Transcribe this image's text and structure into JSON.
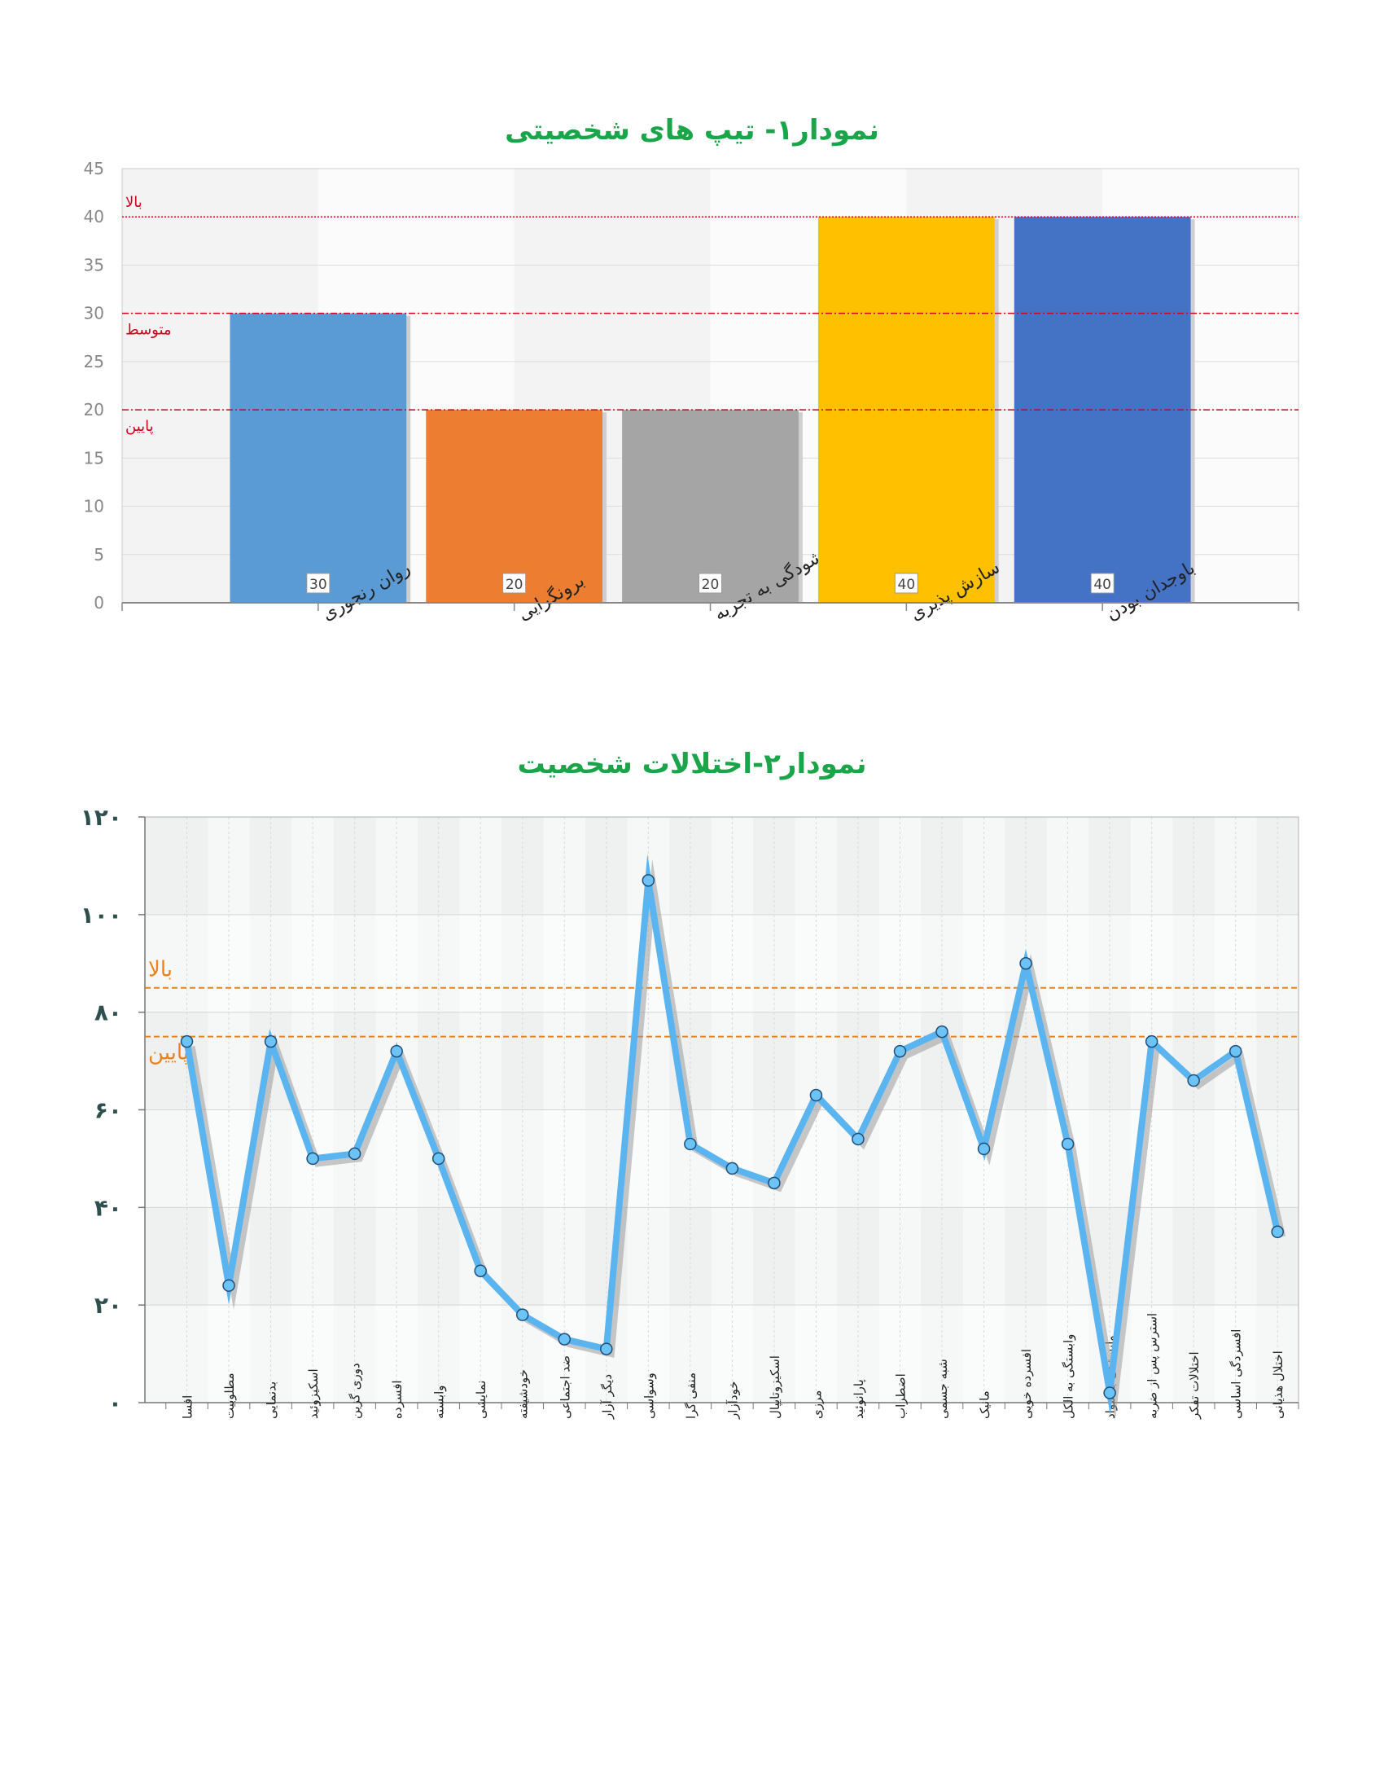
{
  "chart_data": [
    {
      "type": "bar",
      "title": "نمودار۱- تیپ های شخصیتی",
      "xlabel": "",
      "ylabel": "",
      "ylim": [
        0,
        45
      ],
      "yticks": [
        "0",
        "5",
        "10",
        "15",
        "20",
        "25",
        "30",
        "35",
        "40",
        "45"
      ],
      "grid": true,
      "categories": [
        "روان رنجوری",
        "برونگرایی",
        "گشودگی به تجربه",
        "سازش پذیری",
        "باوجدان بودن"
      ],
      "values": [
        30,
        20,
        20,
        40,
        40
      ],
      "data_labels": [
        "30",
        "20",
        "20",
        "40",
        "40"
      ],
      "colors": [
        "#5b9bd5",
        "#ed7d31",
        "#a5a5a5",
        "#ffc000",
        "#4472c4"
      ],
      "reference_lines": [
        {
          "label": "بالا",
          "value": 40,
          "color": "#d0021b"
        },
        {
          "label": "متوسط",
          "value": 30,
          "color": "#d0021b"
        },
        {
          "label": "پایین",
          "value": 20,
          "color": "#d0021b"
        }
      ]
    },
    {
      "type": "line",
      "title": "نمودار۲-اختلالات  شخصیت",
      "xlabel": "",
      "ylabel": "",
      "ylim": [
        0,
        120
      ],
      "yticks": [
        "۰",
        "۲۰",
        "۴۰",
        "۶۰",
        "۸۰",
        "۱۰۰",
        "۱۲۰"
      ],
      "grid": true,
      "categories": [
        "افسا",
        "مطلوبیت",
        "بدنمایی",
        "اسکیزوئید",
        "دوری گزین",
        "افسرده",
        "وابسته",
        "نمایشی",
        "خودشیفته",
        "ضد اجتماعی",
        "دیگر آزار",
        "وسواسی",
        "منفی گرا",
        "خودآزار",
        "اسکیزوتایپال",
        "مرزی",
        "پارانوئید",
        "اضطراب",
        "شبه جسمی",
        "مانیک",
        "افسرده خویی",
        "وابستگی به الکل",
        "وابستگی به مواد",
        "استرس پس از ضربه",
        "اختلالات تفکر",
        "افسردگی اساسی",
        "اختلال هذیانی"
      ],
      "series": [
        {
          "values": [
            74,
            24,
            74,
            50,
            51,
            72,
            50,
            27,
            18,
            13,
            11,
            107,
            53,
            48,
            45,
            63,
            54,
            72,
            76,
            52,
            90,
            53,
            2,
            74,
            66,
            72,
            35
          ],
          "color": "#5ab4f0"
        }
      ],
      "reference_lines": [
        {
          "label": "بالا",
          "value": 85,
          "color": "#e8821e"
        },
        {
          "label": "پایین",
          "value": 75,
          "color": "#e8821e"
        }
      ]
    }
  ]
}
